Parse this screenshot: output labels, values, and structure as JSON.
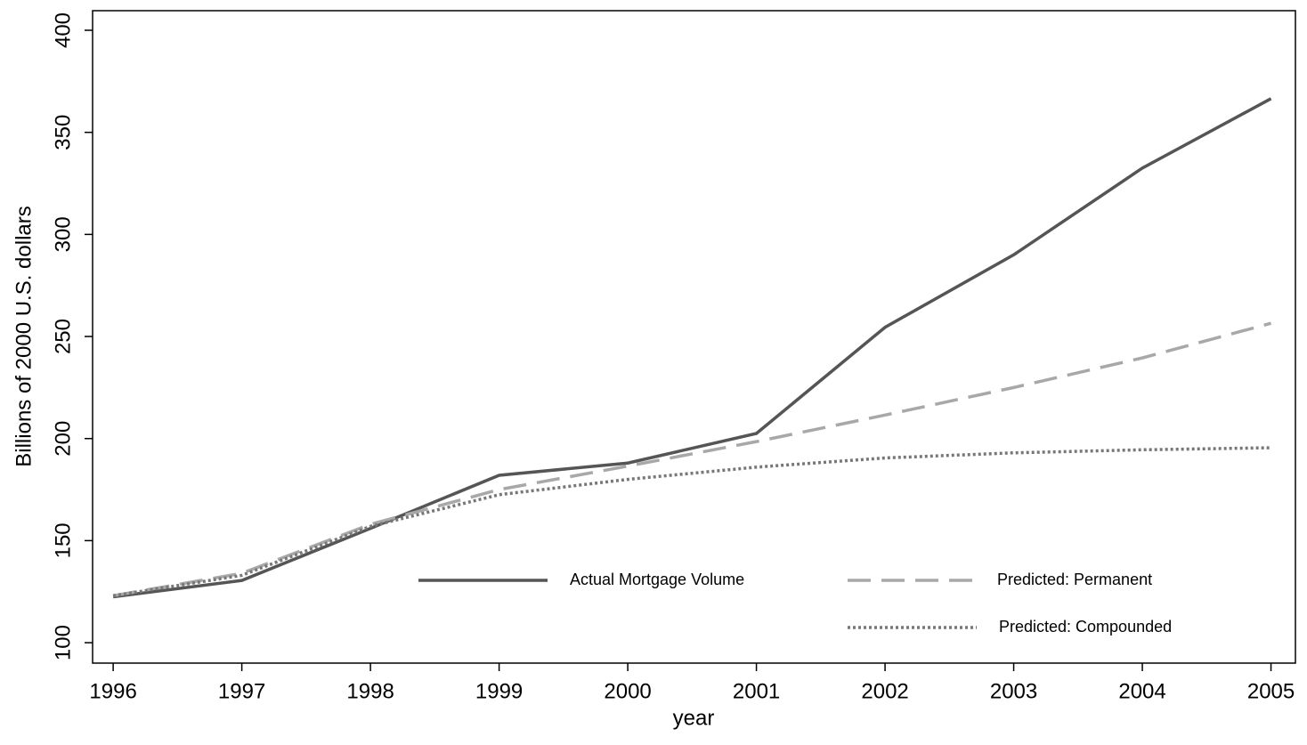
{
  "chart_data": {
    "type": "line",
    "xlabel": "year",
    "ylabel": "Billions of 2000 U.S. dollars",
    "x": [
      1996,
      1997,
      1998,
      1999,
      2000,
      2001,
      2002,
      2003,
      2004,
      2005
    ],
    "series": [
      {
        "name": "Actual Mortgage Volume",
        "color": "#555555",
        "dash": "solid",
        "values": [
          122.5,
          130.5,
          156,
          182,
          188,
          202.5,
          254.5,
          290,
          332.5,
          366.5
        ]
      },
      {
        "name": "Predicted: Permanent",
        "color": "#a8a8a8",
        "dash": "dashed",
        "values": [
          123,
          134,
          158,
          175,
          186.5,
          198.5,
          211.5,
          225,
          239.5,
          256.5
        ]
      },
      {
        "name": "Predicted: Compounded",
        "color": "#777777",
        "dash": "dotted",
        "values": [
          123,
          133,
          157,
          172.5,
          180,
          186,
          190.5,
          193,
          194.5,
          195.5
        ]
      }
    ],
    "xlim": [
      1995.84,
      2005.19
    ],
    "xticks": [
      1996,
      1997,
      1998,
      1999,
      2000,
      2001,
      2002,
      2003,
      2004,
      2005
    ],
    "ylim": [
      90,
      409.6
    ],
    "yticks": [
      100,
      150,
      200,
      250,
      300,
      350,
      400
    ],
    "grid": false
  }
}
